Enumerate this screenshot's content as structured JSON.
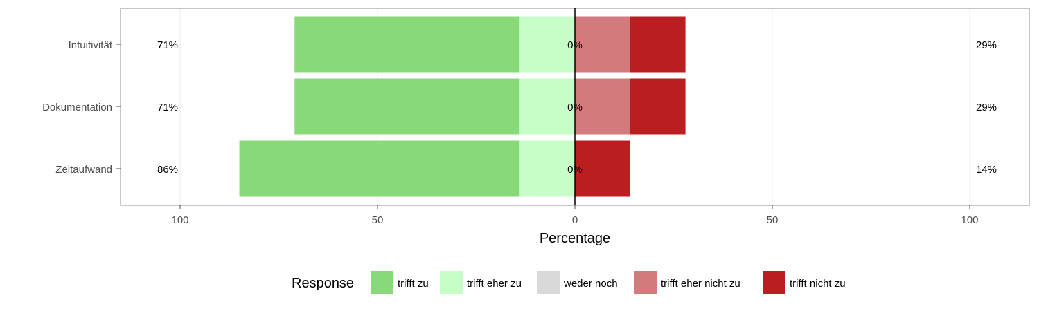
{
  "chart_data": {
    "type": "bar",
    "orientation": "horizontal-diverging",
    "categories": [
      "Intuitivität",
      "Dokumentation",
      "Zeitaufwand"
    ],
    "series": [
      {
        "name": "trifft zu",
        "color": "#88da78",
        "values": [
          57,
          57,
          71
        ]
      },
      {
        "name": "trifft eher zu",
        "color": "#c7fdc7",
        "values": [
          14,
          14,
          14
        ]
      },
      {
        "name": "weder noch",
        "color": "#d9d9d9",
        "values": [
          0,
          0,
          0
        ]
      },
      {
        "name": "trifft eher nicht zu",
        "color": "#d27a7c",
        "values": [
          14,
          14,
          0
        ]
      },
      {
        "name": "trifft nicht zu",
        "color": "#bb1e20",
        "values": [
          14,
          14,
          14
        ]
      }
    ],
    "left_labels": [
      "71%",
      "71%",
      "86%"
    ],
    "center_labels": [
      "0%",
      "0%",
      "0%"
    ],
    "right_labels": [
      "29%",
      "29%",
      "14%"
    ],
    "xlabel": "Percentage",
    "xlim": [
      -100,
      100
    ],
    "xticks": [
      -100,
      -50,
      0,
      50,
      100
    ],
    "xtick_labels": [
      "100",
      "50",
      "0",
      "50",
      "100"
    ],
    "legend": {
      "title": "Response",
      "position": "bottom"
    },
    "grid": true
  }
}
